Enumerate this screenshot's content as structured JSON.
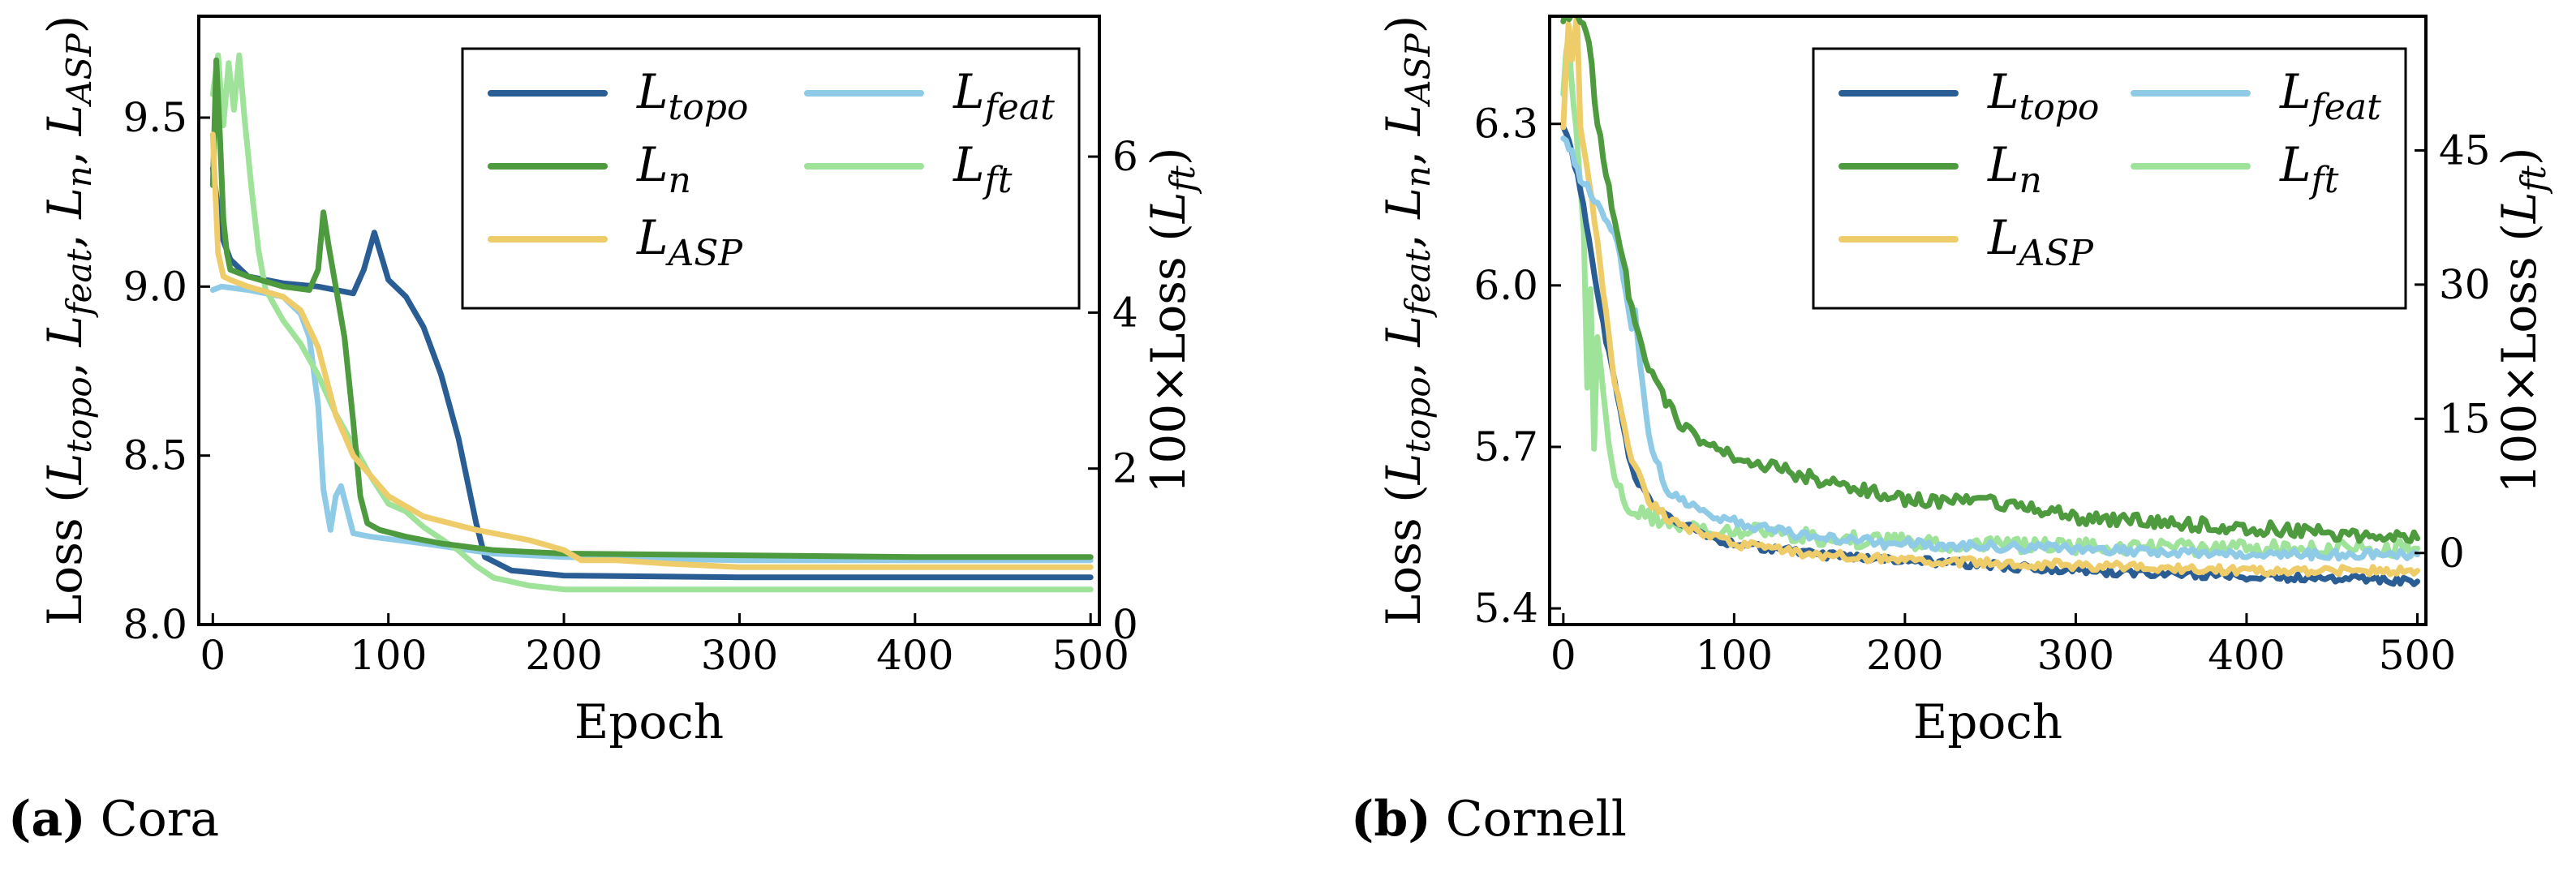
{
  "colors": {
    "topo": "#2a5d94",
    "n": "#4e9a3f",
    "asp": "#efcc6a",
    "feat": "#8fcbe6",
    "ft": "#9fe39a"
  },
  "captions": [
    {
      "letter": "(a)",
      "name": "Cora"
    },
    {
      "letter": "(b)",
      "name": "Cornell"
    }
  ],
  "chart_data": [
    {
      "type": "line",
      "title": "Cora",
      "xlabel": "Epoch",
      "ylabel": "Loss (L_topo, L_feat, L_n, L_ASP)",
      "ylabel2": "100×Loss (L_ft)",
      "xlim": [
        -8,
        505
      ],
      "ylim": [
        8.0,
        9.8
      ],
      "y2lim": [
        0,
        7.8
      ],
      "xticks": [
        0,
        100,
        200,
        300,
        400,
        500
      ],
      "yticks": [
        8.0,
        8.5,
        9.0,
        9.5
      ],
      "ytick_labels": [
        "8.0",
        "8.5",
        "9.0",
        "9.5"
      ],
      "y2ticks": [
        0,
        2,
        4,
        6
      ],
      "y2tick_labels": [
        "0",
        "2",
        "4",
        "6"
      ],
      "legend": [
        {
          "key": "topo",
          "label": "L",
          "sub": "topo"
        },
        {
          "key": "feat",
          "label": "L",
          "sub": "feat"
        },
        {
          "key": "n",
          "label": "L",
          "sub": "n"
        },
        {
          "key": "ft",
          "label": "L",
          "sub": "ft"
        },
        {
          "key": "asp",
          "label": "L",
          "sub": "ASP"
        }
      ],
      "series": [
        {
          "key": "topo",
          "name": "L_topo",
          "axis": "left",
          "x": [
            0,
            5,
            10,
            20,
            40,
            60,
            80,
            86,
            92,
            100,
            110,
            120,
            130,
            140,
            150,
            155,
            170,
            200,
            300,
            400,
            500
          ],
          "y": [
            9.35,
            9.15,
            9.08,
            9.03,
            9.01,
            9.0,
            8.98,
            9.05,
            9.16,
            9.02,
            8.97,
            8.88,
            8.74,
            8.55,
            8.3,
            8.2,
            8.16,
            8.145,
            8.14,
            8.14,
            8.14
          ]
        },
        {
          "key": "feat",
          "name": "L_feat",
          "axis": "left",
          "x": [
            0,
            5,
            20,
            40,
            50,
            55,
            60,
            63,
            67,
            70,
            73,
            76,
            80,
            90,
            120,
            160,
            200,
            300,
            400,
            500
          ],
          "y": [
            8.99,
            9.0,
            8.99,
            8.97,
            8.92,
            8.85,
            8.65,
            8.4,
            8.28,
            8.38,
            8.41,
            8.35,
            8.27,
            8.26,
            8.24,
            8.21,
            8.2,
            8.19,
            8.19,
            8.19
          ]
        },
        {
          "key": "ft",
          "name": "L_ft",
          "axis": "right",
          "x": [
            0,
            3,
            6,
            9,
            12,
            15,
            18,
            22,
            26,
            30,
            35,
            40,
            50,
            60,
            70,
            80,
            90,
            100,
            110,
            120,
            130,
            140,
            150,
            160,
            180,
            200,
            300,
            400,
            500
          ],
          "y": [
            6.8,
            7.3,
            6.4,
            7.2,
            6.6,
            7.3,
            6.5,
            5.6,
            4.8,
            4.3,
            4.1,
            3.9,
            3.6,
            3.2,
            2.7,
            2.3,
            1.9,
            1.55,
            1.45,
            1.25,
            1.1,
            0.95,
            0.75,
            0.6,
            0.5,
            0.45,
            0.45,
            0.45,
            0.45
          ]
        },
        {
          "key": "n",
          "name": "L_n",
          "axis": "left",
          "x": [
            0,
            2,
            4,
            6,
            8,
            10,
            20,
            40,
            55,
            60,
            63,
            66,
            70,
            75,
            80,
            84,
            88,
            95,
            110,
            130,
            160,
            200,
            300,
            400,
            500
          ],
          "y": [
            9.3,
            9.67,
            9.45,
            9.2,
            9.1,
            9.05,
            9.03,
            9.0,
            8.99,
            9.05,
            9.22,
            9.12,
            9.0,
            8.85,
            8.6,
            8.38,
            8.3,
            8.28,
            8.26,
            8.24,
            8.22,
            8.21,
            8.205,
            8.2,
            8.2
          ]
        },
        {
          "key": "asp",
          "name": "L_ASP",
          "axis": "left",
          "x": [
            0,
            3,
            6,
            10,
            20,
            40,
            50,
            60,
            70,
            80,
            100,
            120,
            150,
            180,
            200,
            210,
            230,
            260,
            300,
            400,
            500
          ],
          "y": [
            9.45,
            9.1,
            9.03,
            9.02,
            9.0,
            8.97,
            8.93,
            8.82,
            8.62,
            8.5,
            8.38,
            8.32,
            8.28,
            8.25,
            8.22,
            8.19,
            8.19,
            8.18,
            8.17,
            8.17,
            8.17
          ]
        }
      ]
    },
    {
      "type": "line",
      "title": "Cornell",
      "xlabel": "Epoch",
      "ylabel": "Loss (L_topo, L_feat, L_n, L_ASP)",
      "ylabel2": "100×Loss (L_ft)",
      "xlim": [
        -8,
        505
      ],
      "ylim": [
        5.37,
        6.5
      ],
      "y2lim": [
        -8,
        60
      ],
      "xticks": [
        0,
        100,
        200,
        300,
        400,
        500
      ],
      "yticks": [
        5.4,
        5.7,
        6.0,
        6.3
      ],
      "ytick_labels": [
        "5.4",
        "5.7",
        "6.0",
        "6.3"
      ],
      "y2ticks": [
        0,
        15,
        30,
        45
      ],
      "y2tick_labels": [
        "0",
        "15",
        "30",
        "45"
      ],
      "legend": [
        {
          "key": "topo",
          "label": "L",
          "sub": "topo"
        },
        {
          "key": "feat",
          "label": "L",
          "sub": "feat"
        },
        {
          "key": "n",
          "label": "L",
          "sub": "n"
        },
        {
          "key": "ft",
          "label": "L",
          "sub": "ft"
        },
        {
          "key": "asp",
          "label": "L",
          "sub": "ASP"
        }
      ],
      "series": [
        {
          "key": "ft",
          "name": "L_ft",
          "axis": "right",
          "x": [
            0,
            3,
            6,
            9,
            12,
            14,
            16,
            18,
            20,
            22,
            25,
            28,
            30,
            35,
            40,
            50,
            60,
            80,
            100,
            150,
            200,
            300,
            400,
            500
          ],
          "y": [
            52,
            58,
            50,
            44,
            35,
            18,
            30,
            12,
            25,
            20,
            15,
            11,
            9,
            6,
            5,
            4,
            3.5,
            3,
            2.5,
            1.7,
            1.2,
            0.8,
            0.6,
            0.5
          ],
          "noise": 0.9
        },
        {
          "key": "topo",
          "name": "L_topo",
          "axis": "left",
          "x": [
            0,
            5,
            10,
            15,
            20,
            25,
            30,
            35,
            40,
            50,
            60,
            80,
            100,
            150,
            200,
            250,
            300,
            400,
            500
          ],
          "y": [
            6.3,
            6.25,
            6.18,
            6.08,
            5.98,
            5.9,
            5.82,
            5.74,
            5.66,
            5.6,
            5.57,
            5.54,
            5.52,
            5.5,
            5.49,
            5.48,
            5.47,
            5.46,
            5.45
          ],
          "noise": 0.007
        },
        {
          "key": "asp",
          "name": "L_ASP",
          "axis": "left",
          "x": [
            0,
            3,
            5,
            8,
            10,
            15,
            20,
            25,
            30,
            40,
            50,
            60,
            80,
            100,
            150,
            200,
            300,
            400,
            500
          ],
          "y": [
            6.3,
            6.48,
            6.42,
            6.5,
            6.3,
            6.2,
            6.08,
            5.95,
            5.82,
            5.68,
            5.6,
            5.57,
            5.54,
            5.52,
            5.5,
            5.49,
            5.48,
            5.47,
            5.47
          ],
          "noise": 0.008
        },
        {
          "key": "feat",
          "name": "L_feat",
          "axis": "left",
          "x": [
            0,
            5,
            10,
            20,
            30,
            35,
            40,
            42,
            45,
            50,
            60,
            80,
            100,
            150,
            200,
            300,
            400,
            500
          ],
          "y": [
            6.28,
            6.25,
            6.2,
            6.15,
            6.1,
            6.02,
            5.92,
            5.96,
            5.85,
            5.72,
            5.62,
            5.58,
            5.56,
            5.53,
            5.52,
            5.51,
            5.5,
            5.5
          ],
          "noise": 0.009
        },
        {
          "key": "n",
          "name": "L_n",
          "axis": "left",
          "x": [
            0,
            5,
            10,
            15,
            20,
            25,
            30,
            35,
            40,
            50,
            60,
            70,
            80,
            100,
            150,
            200,
            250,
            300,
            400,
            500
          ],
          "y": [
            6.5,
            6.5,
            6.5,
            6.45,
            6.3,
            6.2,
            6.12,
            6.05,
            5.95,
            5.85,
            5.78,
            5.74,
            5.71,
            5.68,
            5.64,
            5.6,
            5.6,
            5.57,
            5.55,
            5.53
          ],
          "noise": 0.013
        }
      ]
    }
  ]
}
